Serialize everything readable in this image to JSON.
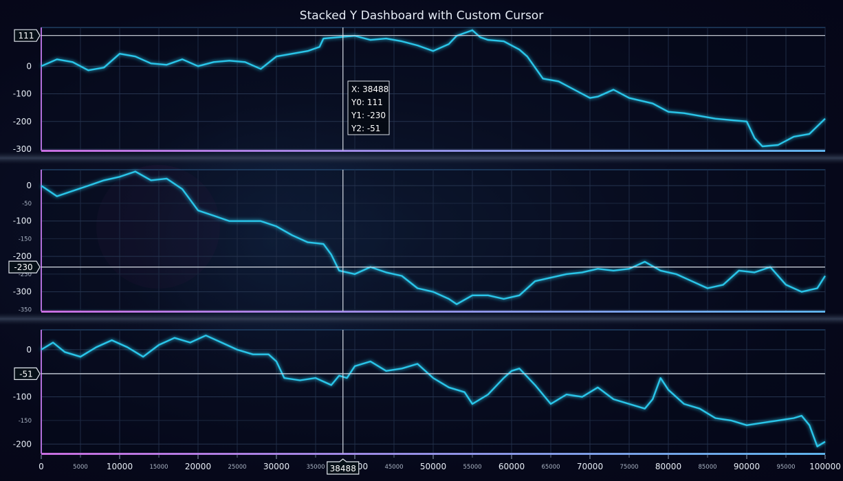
{
  "chart_data": {
    "type": "line",
    "title": "Stacked Y Dashboard with Custom Cursor",
    "x_axis": {
      "range": [
        0,
        100000
      ],
      "major_ticks": [
        0,
        10000,
        20000,
        30000,
        40000,
        50000,
        60000,
        70000,
        80000,
        90000,
        100000
      ],
      "minor_ticks": [
        5000,
        15000,
        25000,
        35000,
        45000,
        55000,
        65000,
        75000,
        85000,
        95000
      ]
    },
    "grid": true,
    "line_color": "#29c6ea",
    "panels": [
      {
        "name": "Y0",
        "ylim": [
          -305,
          140
        ],
        "major_ticks": [
          0,
          -100,
          -200,
          -300
        ],
        "minor_ticks": [],
        "series": {
          "x": [
            0,
            2000,
            4000,
            6000,
            8000,
            10000,
            12000,
            14000,
            16000,
            18000,
            20000,
            22000,
            24000,
            26000,
            28000,
            30000,
            32000,
            34000,
            35500,
            36000,
            38000,
            40000,
            42000,
            44000,
            46000,
            48000,
            50000,
            52000,
            53000,
            55000,
            56000,
            57000,
            59000,
            61000,
            62000,
            64000,
            66000,
            68000,
            70000,
            71000,
            73000,
            75000,
            78000,
            80000,
            82000,
            84000,
            86000,
            88000,
            90000,
            91000,
            92000,
            94000,
            96000,
            98000,
            100000
          ],
          "y": [
            0,
            25,
            15,
            -15,
            -5,
            45,
            35,
            10,
            5,
            25,
            0,
            15,
            20,
            15,
            -10,
            35,
            45,
            55,
            70,
            100,
            105,
            110,
            95,
            100,
            90,
            75,
            55,
            80,
            110,
            130,
            105,
            95,
            90,
            60,
            35,
            -45,
            -55,
            -85,
            -115,
            -110,
            -85,
            -115,
            -135,
            -165,
            -170,
            -180,
            -190,
            -195,
            -200,
            -260,
            -290,
            -285,
            -255,
            -245,
            -190
          ]
        },
        "cursor_value": 111
      },
      {
        "name": "Y1",
        "ylim": [
          -355,
          45
        ],
        "major_ticks": [
          0,
          -100,
          -200,
          -300
        ],
        "minor_ticks": [
          -50,
          -150,
          -250,
          -350
        ],
        "series": {
          "x": [
            0,
            2000,
            4000,
            6000,
            8000,
            10000,
            12000,
            14000,
            16000,
            18000,
            20000,
            22000,
            24000,
            26000,
            28000,
            30000,
            32000,
            34000,
            36000,
            37000,
            38000,
            40000,
            42000,
            44000,
            46000,
            48000,
            50000,
            52000,
            53000,
            55000,
            57000,
            59000,
            61000,
            63000,
            65000,
            67000,
            69000,
            71000,
            73000,
            75000,
            77000,
            79000,
            81000,
            83000,
            85000,
            87000,
            89000,
            91000,
            93000,
            95000,
            97000,
            99000,
            100000
          ],
          "y": [
            0,
            -30,
            -15,
            0,
            15,
            25,
            40,
            15,
            20,
            -10,
            -70,
            -85,
            -100,
            -100,
            -100,
            -115,
            -140,
            -160,
            -165,
            -195,
            -240,
            -250,
            -230,
            -245,
            -255,
            -290,
            -300,
            -320,
            -335,
            -310,
            -310,
            -320,
            -310,
            -270,
            -260,
            -250,
            -245,
            -235,
            -240,
            -235,
            -215,
            -240,
            -250,
            -270,
            -290,
            -280,
            -240,
            -245,
            -230,
            -280,
            -300,
            -290,
            -255
          ]
        },
        "cursor_value": -230
      },
      {
        "name": "Y2",
        "ylim": [
          -220,
          42
        ],
        "major_ticks": [
          0,
          -100,
          -200
        ],
        "minor_ticks": [
          -50,
          -150
        ],
        "series": {
          "x": [
            0,
            1500,
            3000,
            5000,
            7000,
            9000,
            11000,
            13000,
            15000,
            17000,
            19000,
            21000,
            23000,
            25000,
            27000,
            29000,
            30000,
            31000,
            33000,
            35000,
            37000,
            38000,
            39000,
            40000,
            42000,
            44000,
            46000,
            48000,
            50000,
            52000,
            54000,
            55000,
            57000,
            59000,
            60000,
            61000,
            63000,
            65000,
            67000,
            69000,
            71000,
            73000,
            75000,
            77000,
            78000,
            79000,
            80000,
            82000,
            84000,
            86000,
            88000,
            90000,
            92000,
            94000,
            96000,
            97000,
            98000,
            99000,
            100000
          ],
          "y": [
            0,
            15,
            -5,
            -15,
            5,
            20,
            5,
            -15,
            10,
            25,
            15,
            30,
            15,
            0,
            -10,
            -10,
            -25,
            -60,
            -65,
            -60,
            -75,
            -55,
            -60,
            -35,
            -25,
            -45,
            -40,
            -30,
            -60,
            -80,
            -90,
            -115,
            -95,
            -60,
            -45,
            -40,
            -75,
            -115,
            -95,
            -100,
            -80,
            -105,
            -115,
            -125,
            -105,
            -60,
            -85,
            -115,
            -125,
            -145,
            -150,
            -160,
            -155,
            -150,
            -145,
            -140,
            -160,
            -205,
            -195
          ]
        },
        "cursor_value": -51
      }
    ],
    "cursor": {
      "x": 38488,
      "x_label": "38488",
      "tooltip": [
        "X: 38488",
        "Y0: 111",
        "Y1: -230",
        "Y2: -51"
      ]
    }
  }
}
